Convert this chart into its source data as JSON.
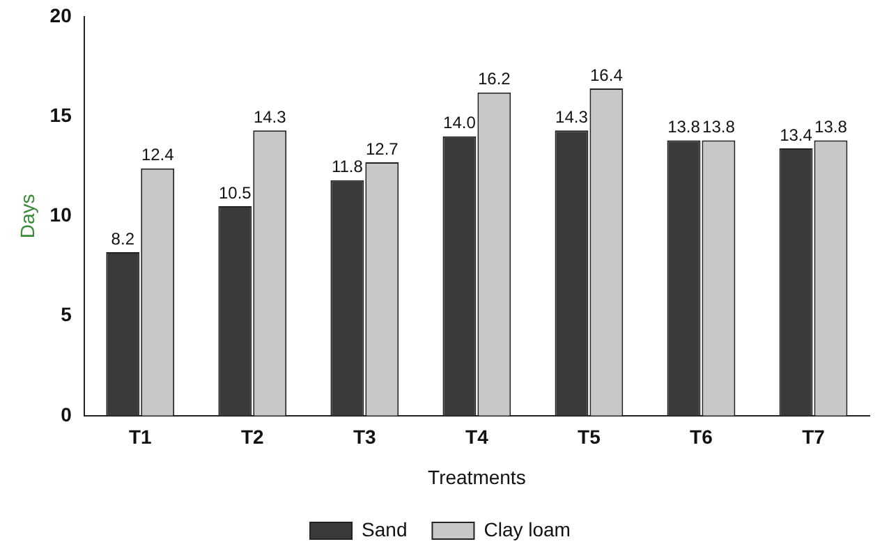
{
  "chart_data": {
    "type": "bar",
    "xlabel": "Treatments",
    "ylabel": "Days",
    "categories": [
      "T1",
      "T2",
      "T3",
      "T4",
      "T5",
      "T6",
      "T7"
    ],
    "series": [
      {
        "name": "Sand",
        "color": "#3a3a3a",
        "values": [
          8.2,
          10.5,
          11.8,
          14.0,
          14.3,
          13.8,
          13.4
        ],
        "value_labels": [
          "8.2",
          "10.5",
          "11.8",
          "14.0",
          "14.3",
          "13.8",
          "13.4"
        ]
      },
      {
        "name": "Clay loam",
        "color": "#c8c8c8",
        "values": [
          12.4,
          14.3,
          12.7,
          16.2,
          16.4,
          13.8,
          13.8
        ],
        "value_labels": [
          "12.4",
          "14.3",
          "12.7",
          "16.2",
          "16.4",
          "13.8",
          "13.8"
        ]
      }
    ],
    "ylim": [
      0,
      20
    ],
    "yticks": [
      0,
      5,
      10,
      15,
      20
    ],
    "grid": false,
    "legend": "bottom"
  }
}
